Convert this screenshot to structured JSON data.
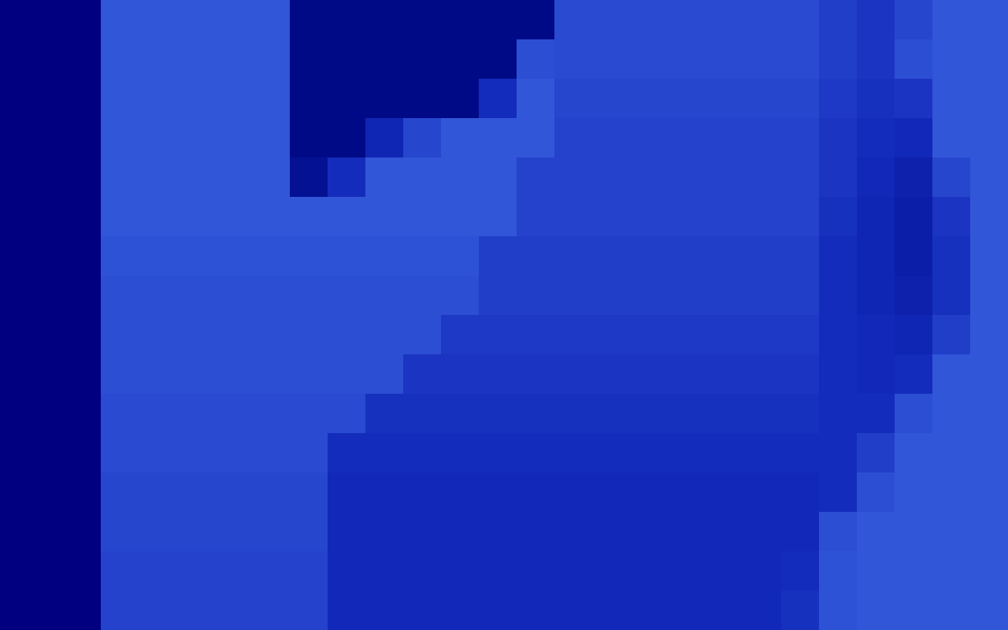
{
  "chart_data": {
    "type": "heatmap",
    "tick_labels": false,
    "zlim": [
      0,
      1
    ],
    "cells": [
      [
        1,
        1,
        1,
        1,
        1,
        0,
        0,
        0,
        0,
        0,
        0,
        0,
        0.85,
        0.85,
        0.85,
        0.85,
        0.85,
        0.85,
        0.85,
        0.7,
        0.6,
        0.8,
        1,
        1
      ],
      [
        1,
        1,
        1,
        1,
        1,
        0,
        0,
        0,
        0,
        0,
        0,
        0.9,
        0.85,
        0.85,
        0.85,
        0.85,
        0.85,
        0.85,
        0.85,
        0.7,
        0.6,
        0.9,
        1,
        1
      ],
      [
        1,
        1,
        1,
        1,
        1,
        0,
        0,
        0,
        0,
        0,
        0.5,
        1,
        0.8,
        0.8,
        0.8,
        0.8,
        0.8,
        0.8,
        0.8,
        0.65,
        0.55,
        0.6,
        1,
        1
      ],
      [
        1,
        1,
        1,
        1,
        1,
        0,
        0,
        0.4,
        0.8,
        1,
        1,
        1,
        0.75,
        0.75,
        0.75,
        0.75,
        0.75,
        0.75,
        0.75,
        0.6,
        0.5,
        0.45,
        1,
        1
      ],
      [
        1,
        1,
        1,
        1,
        1,
        0.1,
        0.5,
        1,
        1,
        1,
        1,
        0.75,
        0.75,
        0.75,
        0.75,
        0.75,
        0.75,
        0.75,
        0.75,
        0.6,
        0.45,
        0.35,
        0.8,
        1
      ],
      [
        1,
        1,
        1,
        1,
        1,
        1,
        1,
        1,
        1,
        1,
        1,
        0.75,
        0.75,
        0.75,
        0.75,
        0.75,
        0.75,
        0.75,
        0.75,
        0.55,
        0.4,
        0.3,
        0.6,
        1
      ],
      [
        0.95,
        0.95,
        0.95,
        0.95,
        0.95,
        0.95,
        0.95,
        0.95,
        0.95,
        0.95,
        0.7,
        0.7,
        0.7,
        0.7,
        0.7,
        0.7,
        0.7,
        0.7,
        0.7,
        0.5,
        0.4,
        0.3,
        0.55,
        1
      ],
      [
        0.9,
        0.9,
        0.9,
        0.9,
        0.9,
        0.9,
        0.9,
        0.9,
        0.9,
        0.9,
        0.7,
        0.7,
        0.7,
        0.7,
        0.7,
        0.7,
        0.7,
        0.7,
        0.7,
        0.5,
        0.4,
        0.35,
        0.55,
        1
      ],
      [
        0.9,
        0.9,
        0.9,
        0.9,
        0.9,
        0.9,
        0.9,
        0.9,
        0.9,
        0.65,
        0.65,
        0.65,
        0.65,
        0.65,
        0.65,
        0.65,
        0.65,
        0.65,
        0.65,
        0.5,
        0.45,
        0.4,
        0.7,
        1
      ],
      [
        0.9,
        0.9,
        0.9,
        0.9,
        0.9,
        0.9,
        0.9,
        0.9,
        0.6,
        0.6,
        0.6,
        0.6,
        0.6,
        0.6,
        0.6,
        0.6,
        0.6,
        0.6,
        0.6,
        0.5,
        0.45,
        0.5,
        1,
        1
      ],
      [
        0.85,
        0.85,
        0.85,
        0.85,
        0.85,
        0.85,
        0.85,
        0.55,
        0.55,
        0.55,
        0.55,
        0.55,
        0.55,
        0.55,
        0.55,
        0.55,
        0.55,
        0.55,
        0.55,
        0.5,
        0.5,
        0.9,
        1,
        1
      ],
      [
        0.85,
        0.85,
        0.85,
        0.85,
        0.85,
        0.85,
        0.5,
        0.5,
        0.5,
        0.5,
        0.5,
        0.5,
        0.5,
        0.5,
        0.5,
        0.5,
        0.5,
        0.5,
        0.5,
        0.5,
        0.7,
        1,
        1,
        1
      ],
      [
        0.8,
        0.8,
        0.8,
        0.8,
        0.8,
        0.8,
        0.45,
        0.45,
        0.45,
        0.45,
        0.45,
        0.45,
        0.45,
        0.45,
        0.45,
        0.45,
        0.45,
        0.45,
        0.45,
        0.5,
        0.9,
        1,
        1,
        1
      ],
      [
        0.8,
        0.8,
        0.8,
        0.8,
        0.8,
        0.8,
        0.45,
        0.45,
        0.45,
        0.45,
        0.45,
        0.45,
        0.45,
        0.45,
        0.45,
        0.45,
        0.45,
        0.45,
        0.45,
        0.9,
        1,
        1,
        1,
        1
      ],
      [
        0.75,
        0.75,
        0.75,
        0.75,
        0.75,
        0.75,
        0.45,
        0.45,
        0.45,
        0.45,
        0.45,
        0.45,
        0.45,
        0.45,
        0.45,
        0.45,
        0.45,
        0.45,
        0.5,
        0.95,
        1,
        1,
        1,
        1
      ],
      [
        0.75,
        0.75,
        0.75,
        0.75,
        0.75,
        0.75,
        0.45,
        0.45,
        0.45,
        0.45,
        0.45,
        0.45,
        0.45,
        0.45,
        0.45,
        0.45,
        0.45,
        0.45,
        0.55,
        0.95,
        1,
        1,
        1,
        1
      ]
    ]
  }
}
